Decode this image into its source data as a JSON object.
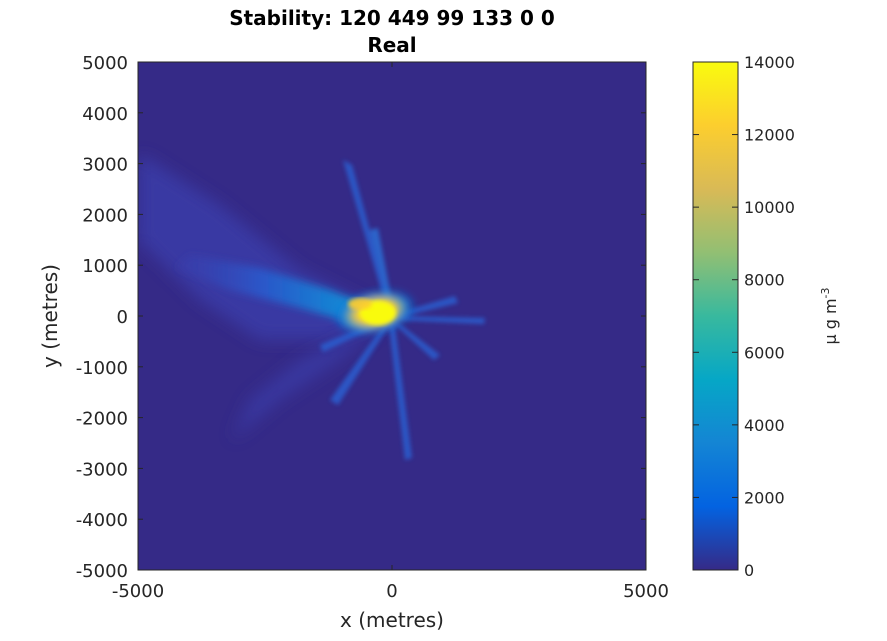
{
  "chart_data": {
    "type": "heatmap",
    "title_line1": "Stability: 120  449   99  133    0    0",
    "title_line2": "Real",
    "xlabel": "x (metres)",
    "ylabel": "y (metres)",
    "xlim": [
      -5000,
      5000
    ],
    "ylim": [
      -5000,
      5000
    ],
    "x_ticks": [
      -5000,
      0,
      5000
    ],
    "y_ticks": [
      5000,
      4000,
      3000,
      2000,
      1000,
      0,
      -1000,
      -2000,
      -3000,
      -4000,
      -5000
    ],
    "colorbar": {
      "label": "μ g m",
      "label_superscript": "-3",
      "range": [
        0,
        14000
      ],
      "ticks": [
        14000,
        12000,
        10000,
        8000,
        6000,
        4000,
        2000,
        0
      ],
      "colormap": "parula",
      "stops": [
        "#352a87",
        "#0363e1",
        "#1485d4",
        "#06a7c6",
        "#38b99e",
        "#92bf73",
        "#d9ba56",
        "#fcce2e",
        "#f9fb0e"
      ]
    },
    "background_color": "#352a87",
    "plume": {
      "source": [
        -200,
        0
      ],
      "peak_value": 14000,
      "main_direction": "west-northwest",
      "description_points": [
        {
          "x": -200,
          "y": 0,
          "value": 14000
        },
        {
          "x": -600,
          "y": 300,
          "value": 12000
        },
        {
          "x": -1500,
          "y": 700,
          "value": 4000
        },
        {
          "x": -3000,
          "y": 1200,
          "value": 1500
        },
        {
          "x": -5000,
          "y": 2000,
          "value": 700
        }
      ]
    }
  }
}
